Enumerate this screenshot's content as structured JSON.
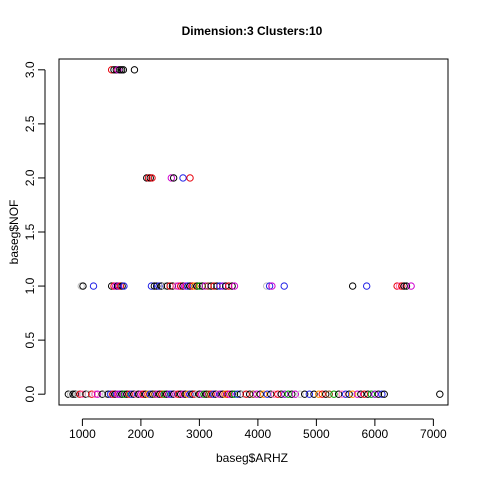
{
  "chart_data": {
    "type": "scatter",
    "title": "Dimension:3 Clusters:10",
    "xlabel": "baseg$ARHZ",
    "ylabel": "baseg$NOF",
    "xlim": [
      600,
      7250
    ],
    "ylim": [
      -0.1,
      3.1
    ],
    "x_ticks": [
      1000,
      2000,
      3000,
      4000,
      5000,
      6000,
      7000
    ],
    "y_ticks": [
      0.0,
      0.5,
      1.0,
      1.5,
      2.0,
      2.5,
      3.0
    ],
    "x_tick_labels": [
      "1000",
      "2000",
      "3000",
      "4000",
      "5000",
      "6000",
      "7000"
    ],
    "y_tick_labels": [
      "0.0",
      "0.5",
      "1.0",
      "1.5",
      "2.0",
      "2.5",
      "3.0"
    ],
    "grid": false,
    "marker": "open-circle",
    "cluster_colors": [
      "#000000",
      "#e8000b",
      "#1f1fe6",
      "#d000d0",
      "#ff69b4",
      "#00a000",
      "#ff8c00",
      "#bebebe",
      "#8b4513",
      "#9400d3"
    ],
    "points": [
      {
        "x": 1500,
        "y": 3,
        "c": 1
      },
      {
        "x": 1540,
        "y": 3,
        "c": 0
      },
      {
        "x": 1580,
        "y": 3,
        "c": 0
      },
      {
        "x": 1610,
        "y": 3,
        "c": 3
      },
      {
        "x": 1640,
        "y": 3,
        "c": 0
      },
      {
        "x": 1670,
        "y": 3,
        "c": 0
      },
      {
        "x": 1700,
        "y": 3,
        "c": 0
      },
      {
        "x": 1890,
        "y": 3,
        "c": 0
      },
      {
        "x": 2100,
        "y": 2,
        "c": 0
      },
      {
        "x": 2130,
        "y": 2,
        "c": 1
      },
      {
        "x": 2160,
        "y": 2,
        "c": 0
      },
      {
        "x": 2190,
        "y": 2,
        "c": 1
      },
      {
        "x": 2520,
        "y": 2,
        "c": 3
      },
      {
        "x": 2560,
        "y": 2,
        "c": 0
      },
      {
        "x": 2720,
        "y": 2,
        "c": 2
      },
      {
        "x": 2840,
        "y": 2,
        "c": 1
      },
      {
        "x": 980,
        "y": 1,
        "c": 7
      },
      {
        "x": 1010,
        "y": 1,
        "c": 0
      },
      {
        "x": 1190,
        "y": 1,
        "c": 2
      },
      {
        "x": 1500,
        "y": 1,
        "c": 0
      },
      {
        "x": 1540,
        "y": 1,
        "c": 1
      },
      {
        "x": 1570,
        "y": 1,
        "c": 3
      },
      {
        "x": 1600,
        "y": 1,
        "c": 0
      },
      {
        "x": 1620,
        "y": 1,
        "c": 9
      },
      {
        "x": 1650,
        "y": 1,
        "c": 1
      },
      {
        "x": 1680,
        "y": 1,
        "c": 0
      },
      {
        "x": 1710,
        "y": 1,
        "c": 2
      },
      {
        "x": 2180,
        "y": 1,
        "c": 2
      },
      {
        "x": 2230,
        "y": 1,
        "c": 0
      },
      {
        "x": 2270,
        "y": 1,
        "c": 0
      },
      {
        "x": 2310,
        "y": 1,
        "c": 2
      },
      {
        "x": 2350,
        "y": 1,
        "c": 0
      },
      {
        "x": 2400,
        "y": 1,
        "c": 7
      },
      {
        "x": 2450,
        "y": 1,
        "c": 0
      },
      {
        "x": 2500,
        "y": 1,
        "c": 1
      },
      {
        "x": 2540,
        "y": 1,
        "c": 0
      },
      {
        "x": 2600,
        "y": 1,
        "c": 4
      },
      {
        "x": 2640,
        "y": 1,
        "c": 3
      },
      {
        "x": 2680,
        "y": 1,
        "c": 1
      },
      {
        "x": 2720,
        "y": 1,
        "c": 0
      },
      {
        "x": 2760,
        "y": 1,
        "c": 3
      },
      {
        "x": 2800,
        "y": 1,
        "c": 2
      },
      {
        "x": 2840,
        "y": 1,
        "c": 0
      },
      {
        "x": 2880,
        "y": 1,
        "c": 1
      },
      {
        "x": 2920,
        "y": 1,
        "c": 6
      },
      {
        "x": 2960,
        "y": 1,
        "c": 0
      },
      {
        "x": 3000,
        "y": 1,
        "c": 5
      },
      {
        "x": 3050,
        "y": 1,
        "c": 0
      },
      {
        "x": 3100,
        "y": 1,
        "c": 3
      },
      {
        "x": 3150,
        "y": 1,
        "c": 8
      },
      {
        "x": 3200,
        "y": 1,
        "c": 0
      },
      {
        "x": 3250,
        "y": 1,
        "c": 1
      },
      {
        "x": 3300,
        "y": 1,
        "c": 0
      },
      {
        "x": 3350,
        "y": 1,
        "c": 2
      },
      {
        "x": 3400,
        "y": 1,
        "c": 9
      },
      {
        "x": 3450,
        "y": 1,
        "c": 0
      },
      {
        "x": 3500,
        "y": 1,
        "c": 1
      },
      {
        "x": 3560,
        "y": 1,
        "c": 0
      },
      {
        "x": 3600,
        "y": 1,
        "c": 3
      },
      {
        "x": 4150,
        "y": 1,
        "c": 7
      },
      {
        "x": 4200,
        "y": 1,
        "c": 2
      },
      {
        "x": 4240,
        "y": 1,
        "c": 3
      },
      {
        "x": 4450,
        "y": 1,
        "c": 2
      },
      {
        "x": 5620,
        "y": 1,
        "c": 0
      },
      {
        "x": 5860,
        "y": 1,
        "c": 2
      },
      {
        "x": 6380,
        "y": 1,
        "c": 1
      },
      {
        "x": 6420,
        "y": 1,
        "c": 4
      },
      {
        "x": 6460,
        "y": 1,
        "c": 1
      },
      {
        "x": 6500,
        "y": 1,
        "c": 0
      },
      {
        "x": 6540,
        "y": 1,
        "c": 0
      },
      {
        "x": 6620,
        "y": 1,
        "c": 3
      },
      {
        "x": 760,
        "y": 0,
        "c": 0
      },
      {
        "x": 800,
        "y": 0,
        "c": 7
      },
      {
        "x": 840,
        "y": 0,
        "c": 0
      },
      {
        "x": 880,
        "y": 0,
        "c": 0
      },
      {
        "x": 920,
        "y": 0,
        "c": 7
      },
      {
        "x": 960,
        "y": 0,
        "c": 1
      },
      {
        "x": 1000,
        "y": 0,
        "c": 4
      },
      {
        "x": 1060,
        "y": 0,
        "c": 0
      },
      {
        "x": 1100,
        "y": 0,
        "c": 7
      },
      {
        "x": 1160,
        "y": 0,
        "c": 1
      },
      {
        "x": 1220,
        "y": 0,
        "c": 4
      },
      {
        "x": 1260,
        "y": 0,
        "c": 3
      },
      {
        "x": 1340,
        "y": 0,
        "c": 0
      },
      {
        "x": 1400,
        "y": 0,
        "c": 7
      },
      {
        "x": 1440,
        "y": 0,
        "c": 0
      },
      {
        "x": 1480,
        "y": 0,
        "c": 2
      },
      {
        "x": 1520,
        "y": 0,
        "c": 1
      },
      {
        "x": 1560,
        "y": 0,
        "c": 0
      },
      {
        "x": 1600,
        "y": 0,
        "c": 3
      },
      {
        "x": 1640,
        "y": 0,
        "c": 9
      },
      {
        "x": 1680,
        "y": 0,
        "c": 0
      },
      {
        "x": 1720,
        "y": 0,
        "c": 5
      },
      {
        "x": 1760,
        "y": 0,
        "c": 0
      },
      {
        "x": 1800,
        "y": 0,
        "c": 1
      },
      {
        "x": 1840,
        "y": 0,
        "c": 2
      },
      {
        "x": 1880,
        "y": 0,
        "c": 0
      },
      {
        "x": 1920,
        "y": 0,
        "c": 4
      },
      {
        "x": 1960,
        "y": 0,
        "c": 0
      },
      {
        "x": 2000,
        "y": 0,
        "c": 3
      },
      {
        "x": 2040,
        "y": 0,
        "c": 1
      },
      {
        "x": 2080,
        "y": 0,
        "c": 0
      },
      {
        "x": 2120,
        "y": 0,
        "c": 6
      },
      {
        "x": 2160,
        "y": 0,
        "c": 2
      },
      {
        "x": 2200,
        "y": 0,
        "c": 0
      },
      {
        "x": 2240,
        "y": 0,
        "c": 8
      },
      {
        "x": 2280,
        "y": 0,
        "c": 3
      },
      {
        "x": 2320,
        "y": 0,
        "c": 0
      },
      {
        "x": 2360,
        "y": 0,
        "c": 1
      },
      {
        "x": 2400,
        "y": 0,
        "c": 5
      },
      {
        "x": 2440,
        "y": 0,
        "c": 0
      },
      {
        "x": 2480,
        "y": 0,
        "c": 9
      },
      {
        "x": 2520,
        "y": 0,
        "c": 2
      },
      {
        "x": 2560,
        "y": 0,
        "c": 0
      },
      {
        "x": 2600,
        "y": 0,
        "c": 4
      },
      {
        "x": 2640,
        "y": 0,
        "c": 1
      },
      {
        "x": 2680,
        "y": 0,
        "c": 0
      },
      {
        "x": 2720,
        "y": 0,
        "c": 3
      },
      {
        "x": 2760,
        "y": 0,
        "c": 0
      },
      {
        "x": 2800,
        "y": 0,
        "c": 6
      },
      {
        "x": 2840,
        "y": 0,
        "c": 2
      },
      {
        "x": 2880,
        "y": 0,
        "c": 0
      },
      {
        "x": 2920,
        "y": 0,
        "c": 1
      },
      {
        "x": 2960,
        "y": 0,
        "c": 7
      },
      {
        "x": 3000,
        "y": 0,
        "c": 0
      },
      {
        "x": 3040,
        "y": 0,
        "c": 3
      },
      {
        "x": 3080,
        "y": 0,
        "c": 5
      },
      {
        "x": 3120,
        "y": 0,
        "c": 0
      },
      {
        "x": 3160,
        "y": 0,
        "c": 8
      },
      {
        "x": 3200,
        "y": 0,
        "c": 1
      },
      {
        "x": 3240,
        "y": 0,
        "c": 2
      },
      {
        "x": 3280,
        "y": 0,
        "c": 0
      },
      {
        "x": 3320,
        "y": 0,
        "c": 4
      },
      {
        "x": 3360,
        "y": 0,
        "c": 9
      },
      {
        "x": 3400,
        "y": 0,
        "c": 0
      },
      {
        "x": 3440,
        "y": 0,
        "c": 6
      },
      {
        "x": 3480,
        "y": 0,
        "c": 1
      },
      {
        "x": 3520,
        "y": 0,
        "c": 3
      },
      {
        "x": 3560,
        "y": 0,
        "c": 0
      },
      {
        "x": 3600,
        "y": 0,
        "c": 5
      },
      {
        "x": 3650,
        "y": 0,
        "c": 2
      },
      {
        "x": 3700,
        "y": 0,
        "c": 0
      },
      {
        "x": 3750,
        "y": 0,
        "c": 7
      },
      {
        "x": 3800,
        "y": 0,
        "c": 1
      },
      {
        "x": 3860,
        "y": 0,
        "c": 0
      },
      {
        "x": 3920,
        "y": 0,
        "c": 8
      },
      {
        "x": 3980,
        "y": 0,
        "c": 3
      },
      {
        "x": 4040,
        "y": 0,
        "c": 0
      },
      {
        "x": 4100,
        "y": 0,
        "c": 6
      },
      {
        "x": 4160,
        "y": 0,
        "c": 2
      },
      {
        "x": 4220,
        "y": 0,
        "c": 0
      },
      {
        "x": 4280,
        "y": 0,
        "c": 4
      },
      {
        "x": 4340,
        "y": 0,
        "c": 1
      },
      {
        "x": 4400,
        "y": 0,
        "c": 0
      },
      {
        "x": 4460,
        "y": 0,
        "c": 9
      },
      {
        "x": 4520,
        "y": 0,
        "c": 5
      },
      {
        "x": 4580,
        "y": 0,
        "c": 0
      },
      {
        "x": 4640,
        "y": 0,
        "c": 3
      },
      {
        "x": 4720,
        "y": 0,
        "c": 7
      },
      {
        "x": 4800,
        "y": 0,
        "c": 0
      },
      {
        "x": 4880,
        "y": 0,
        "c": 2
      },
      {
        "x": 4960,
        "y": 0,
        "c": 0
      },
      {
        "x": 5040,
        "y": 0,
        "c": 6
      },
      {
        "x": 5100,
        "y": 0,
        "c": 1
      },
      {
        "x": 5160,
        "y": 0,
        "c": 0
      },
      {
        "x": 5220,
        "y": 0,
        "c": 8
      },
      {
        "x": 5300,
        "y": 0,
        "c": 5
      },
      {
        "x": 5380,
        "y": 0,
        "c": 0
      },
      {
        "x": 5440,
        "y": 0,
        "c": 4
      },
      {
        "x": 5500,
        "y": 0,
        "c": 2
      },
      {
        "x": 5560,
        "y": 0,
        "c": 0
      },
      {
        "x": 5620,
        "y": 0,
        "c": 6
      },
      {
        "x": 5700,
        "y": 0,
        "c": 3
      },
      {
        "x": 5760,
        "y": 0,
        "c": 0
      },
      {
        "x": 5820,
        "y": 0,
        "c": 1
      },
      {
        "x": 5880,
        "y": 0,
        "c": 0
      },
      {
        "x": 5940,
        "y": 0,
        "c": 5
      },
      {
        "x": 6000,
        "y": 0,
        "c": 9
      },
      {
        "x": 6060,
        "y": 0,
        "c": 0
      },
      {
        "x": 6120,
        "y": 0,
        "c": 2
      },
      {
        "x": 6160,
        "y": 0,
        "c": 0
      },
      {
        "x": 7110,
        "y": 0,
        "c": 0
      }
    ]
  }
}
